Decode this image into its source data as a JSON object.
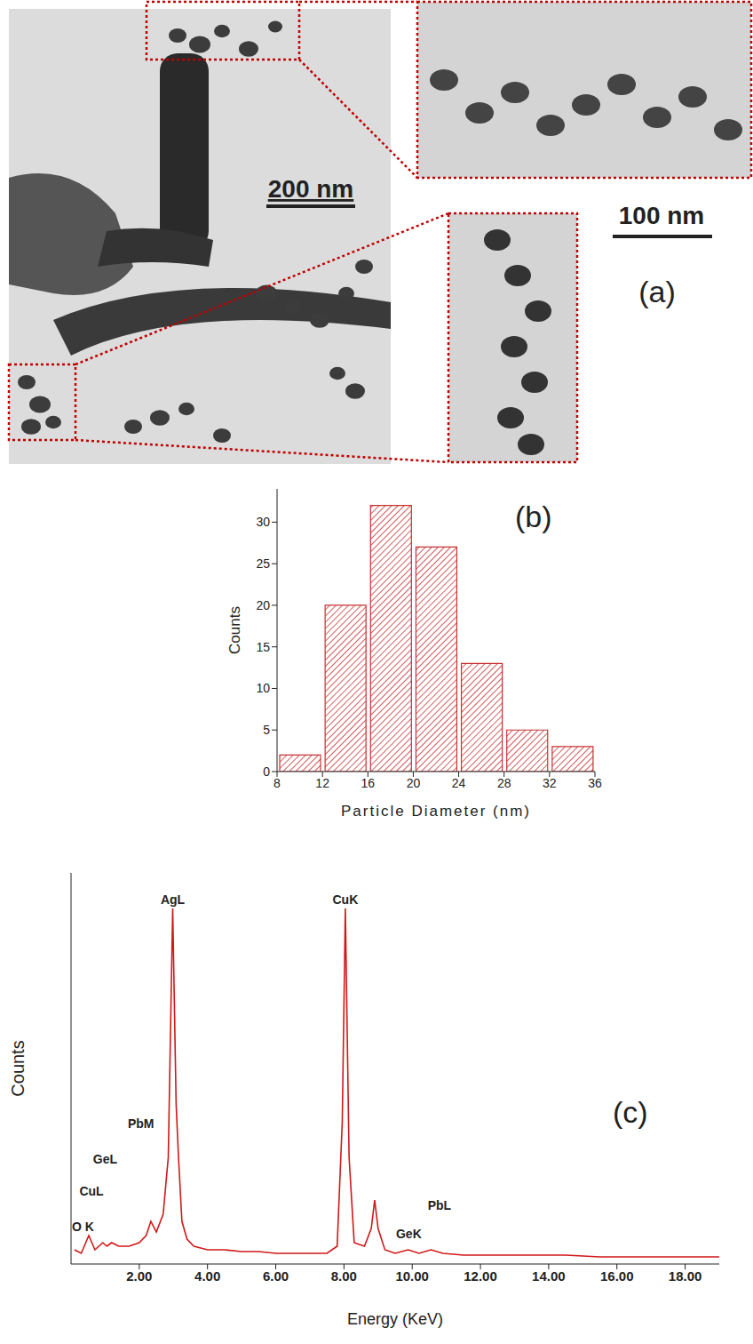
{
  "panel_a": {
    "label": "(a)",
    "scale_bar_labels": [
      "200 nm",
      "100 nm"
    ]
  },
  "chart_data": [
    {
      "type": "histogram",
      "label": "(b)",
      "bins": [
        8,
        12,
        16,
        20,
        24,
        28,
        32,
        36
      ],
      "values": [
        2,
        20,
        32,
        27,
        13,
        5,
        3
      ],
      "color": "#c83232",
      "xlabel": "Particle Diameter (nm)",
      "ylabel": "Counts",
      "xlim": [
        8,
        36
      ],
      "xticks": [
        8,
        12,
        16,
        20,
        24,
        28,
        32,
        36
      ],
      "ylim": [
        0,
        34
      ],
      "yticks": [
        0,
        5,
        10,
        15,
        20,
        25,
        30
      ]
    },
    {
      "type": "line",
      "label": "(c)",
      "x": [
        0.1,
        0.3,
        0.52,
        0.7,
        0.93,
        1.05,
        1.19,
        1.4,
        1.7,
        2.0,
        2.2,
        2.34,
        2.5,
        2.7,
        2.85,
        2.98,
        3.08,
        3.15,
        3.25,
        3.4,
        3.6,
        4.0,
        4.5,
        5.0,
        5.5,
        6.0,
        6.5,
        7.0,
        7.5,
        7.8,
        7.95,
        8.04,
        8.15,
        8.3,
        8.6,
        8.8,
        8.9,
        9.0,
        9.2,
        9.5,
        9.88,
        10.2,
        10.55,
        10.9,
        11.5,
        12.5,
        13.5,
        14.5,
        15.5,
        16.5,
        17.5,
        18.5,
        19.0
      ],
      "values": [
        4,
        3,
        8,
        4,
        6,
        5,
        6,
        5,
        5,
        6,
        8,
        12,
        9,
        14,
        30,
        100,
        45,
        30,
        12,
        7,
        5,
        4,
        4,
        3.5,
        3.5,
        3,
        3,
        3,
        3,
        5,
        40,
        100,
        30,
        6,
        5,
        10,
        18,
        10,
        4,
        3,
        4,
        3,
        4,
        3,
        2.5,
        2.5,
        2.5,
        2.5,
        2,
        2,
        2,
        2,
        2
      ],
      "color": "#d01818",
      "xlabel": "Energy (KeV)",
      "ylabel": "Counts",
      "xlim": [
        0,
        19
      ],
      "xticks": [
        {
          "value": 2,
          "label": "2.00"
        },
        {
          "value": 4,
          "label": "4.00"
        },
        {
          "value": 6,
          "label": "6.00"
        },
        {
          "value": 8,
          "label": "8.00"
        },
        {
          "value": 10,
          "label": "10.00"
        },
        {
          "value": 12,
          "label": "12.00"
        },
        {
          "value": 14,
          "label": "14.00"
        },
        {
          "value": 16,
          "label": "16.00"
        },
        {
          "value": 18,
          "label": "18.00"
        }
      ],
      "ylim": [
        0,
        110
      ],
      "tick_labels": "x",
      "annotations": [
        {
          "text": "O K",
          "x": 0.35,
          "y": 8
        },
        {
          "text": "CuL",
          "x": 0.6,
          "y": 18
        },
        {
          "text": "GeL",
          "x": 1.0,
          "y": 27
        },
        {
          "text": "PbM",
          "x": 2.05,
          "y": 37
        },
        {
          "text": "AgL",
          "x": 2.98,
          "y": 100
        },
        {
          "text": "CuK",
          "x": 8.04,
          "y": 100
        },
        {
          "text": "GeK",
          "x": 9.9,
          "y": 6
        },
        {
          "text": "PbL",
          "x": 10.8,
          "y": 14
        }
      ]
    }
  ]
}
